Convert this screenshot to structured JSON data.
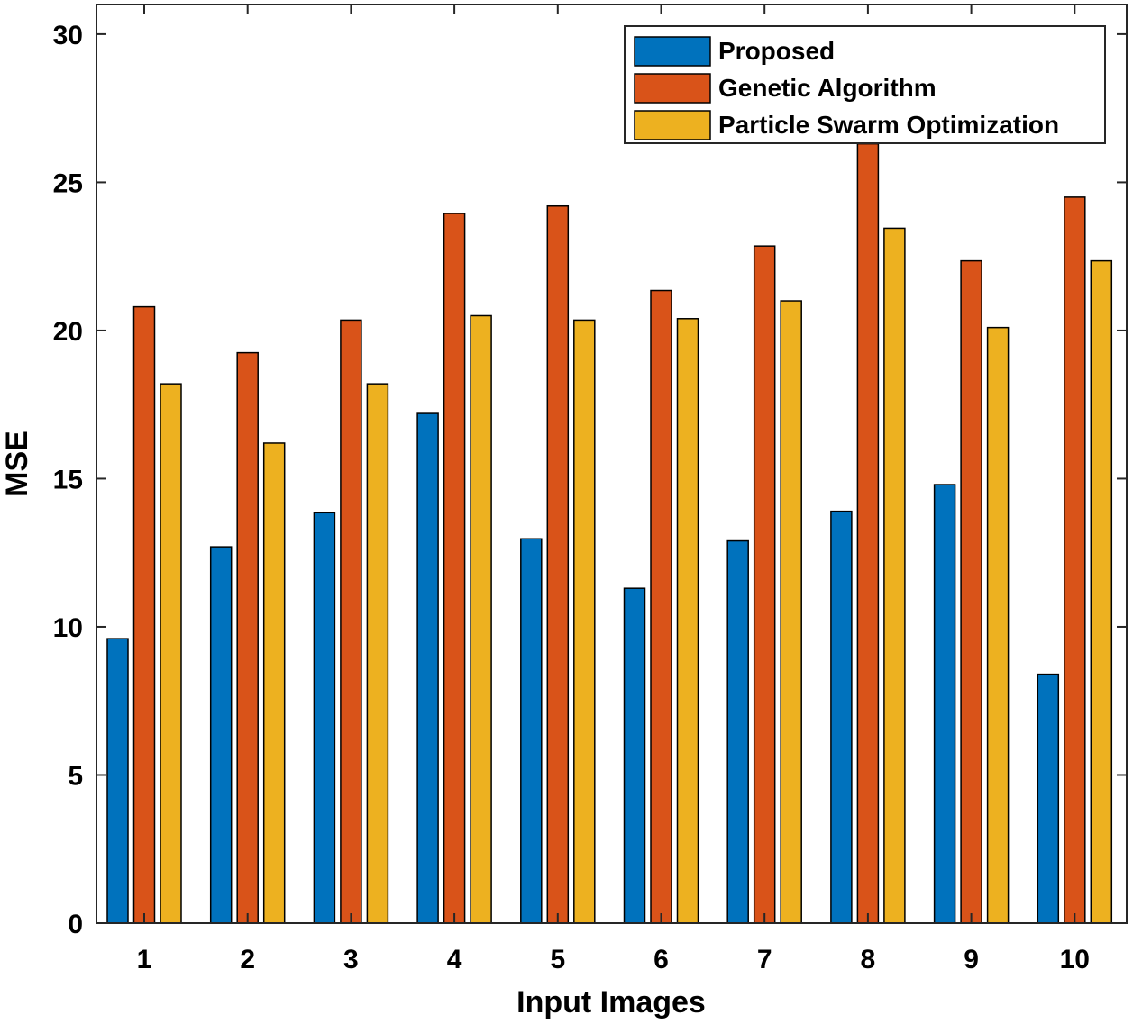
{
  "chart_data": {
    "type": "bar",
    "categories": [
      "1",
      "2",
      "3",
      "4",
      "5",
      "6",
      "7",
      "8",
      "9",
      "10"
    ],
    "series": [
      {
        "name": "Proposed",
        "color": "#0072BD",
        "values": [
          9.6,
          12.7,
          13.85,
          17.2,
          12.97,
          11.3,
          12.9,
          13.9,
          14.8,
          8.4
        ]
      },
      {
        "name": "Genetic Algorithm",
        "color": "#D95319",
        "values": [
          20.8,
          19.25,
          20.35,
          23.95,
          24.2,
          21.35,
          22.85,
          26.3,
          22.35,
          24.5
        ]
      },
      {
        "name": "Particle Swarm Optimization",
        "color": "#EDB120",
        "values": [
          18.2,
          16.2,
          18.2,
          20.5,
          20.35,
          20.4,
          21.0,
          23.45,
          20.1,
          22.35
        ]
      }
    ],
    "title": "",
    "xlabel": "Input Images",
    "ylabel": "MSE",
    "ylim": [
      0,
      31
    ],
    "yticks": [
      0,
      5,
      10,
      15,
      20,
      25,
      30
    ],
    "grid": false,
    "legend_position": "top-right"
  }
}
